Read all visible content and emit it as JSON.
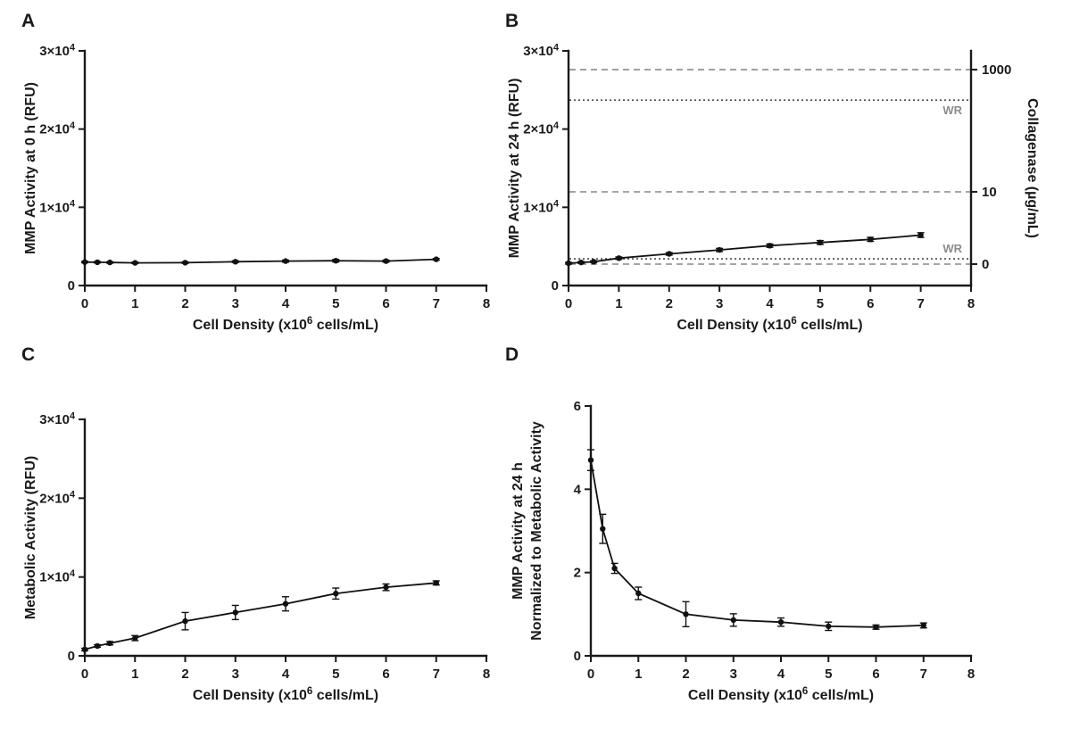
{
  "figure": {
    "background": "#ffffff",
    "panel_labels": [
      "A",
      "B",
      "C",
      "D"
    ]
  },
  "colors": {
    "axis": "#1a1a1a",
    "text": "#1a1a1a",
    "data_line": "#111111",
    "ref_dashed": "#9a9a9a",
    "ref_dotted": "#4a4a4a",
    "wr_label": "#8c8c8c"
  },
  "chart_data": [
    {
      "type": "line",
      "panel": "A",
      "xlabel": "Cell Density (x10^{6} cells/mL)",
      "ylabel": [
        "MMP Activity at 0 h (RFU)"
      ],
      "xlim": [
        0,
        8
      ],
      "ylim": [
        0,
        30000
      ],
      "xticks": [
        0,
        1,
        2,
        3,
        4,
        5,
        6,
        7,
        8
      ],
      "xtick_labels": [
        "0",
        "1",
        "2",
        "3",
        "4",
        "5",
        "6",
        "7",
        "8"
      ],
      "yticks": [
        0,
        10000,
        20000,
        30000
      ],
      "ytick_labels": [
        "0",
        "1×10^{4}",
        "2×10^{4}",
        "3×10^{4}"
      ],
      "x": [
        0,
        0.25,
        0.5,
        1,
        2,
        3,
        4,
        5,
        6,
        7
      ],
      "series": [
        {
          "name": "MMP activity at 0 h",
          "marker": "circle",
          "values": [
            3000,
            2980,
            2950,
            2900,
            2920,
            3050,
            3120,
            3170,
            3120,
            3350
          ],
          "errors": [
            90,
            90,
            90,
            90,
            90,
            110,
            130,
            160,
            130,
            110
          ]
        }
      ]
    },
    {
      "type": "line",
      "panel": "B",
      "xlabel": "Cell Density (x10^{6} cells/mL)",
      "ylabel": [
        "MMP Activity at 24 h (RFU)"
      ],
      "xlim": [
        0,
        8
      ],
      "ylim": [
        0,
        30000
      ],
      "xticks": [
        0,
        1,
        2,
        3,
        4,
        5,
        6,
        7,
        8
      ],
      "xtick_labels": [
        "0",
        "1",
        "2",
        "3",
        "4",
        "5",
        "6",
        "7",
        "8"
      ],
      "yticks": [
        0,
        10000,
        20000,
        30000
      ],
      "ytick_labels": [
        "0",
        "1×10^{4}",
        "2×10^{4}",
        "3×10^{4}"
      ],
      "x": [
        0,
        0.25,
        0.5,
        1,
        2,
        3,
        4,
        5,
        6,
        7
      ],
      "series": [
        {
          "name": "MMP activity at 24 h",
          "marker": "circle",
          "values": [
            2850,
            2950,
            3050,
            3500,
            4050,
            4550,
            5100,
            5500,
            5900,
            6450
          ],
          "errors": [
            110,
            110,
            110,
            150,
            160,
            200,
            210,
            250,
            260,
            300
          ]
        }
      ],
      "ref_lines": [
        {
          "y": 27600,
          "style": "dashed"
        },
        {
          "y": 23700,
          "style": "dotted",
          "label": "WR",
          "label_pos": "below"
        },
        {
          "y": 11980,
          "style": "dashed"
        },
        {
          "y": 3420,
          "style": "dotted",
          "label": "WR",
          "label_pos": "above"
        },
        {
          "y": 2740,
          "style": "dashed"
        }
      ],
      "right_axis": {
        "title": "Collagenase (µg/mL)",
        "ticks": [
          {
            "label": "1000",
            "y": 27600
          },
          {
            "label": "10",
            "y": 11980
          },
          {
            "label": "0",
            "y": 2740
          }
        ]
      }
    },
    {
      "type": "line",
      "panel": "C",
      "xlabel": "Cell Density (x10^{6} cells/mL)",
      "ylabel": [
        "Metabolic Activity (RFU)"
      ],
      "xlim": [
        0,
        8
      ],
      "ylim": [
        0,
        30000
      ],
      "xticks": [
        0,
        1,
        2,
        3,
        4,
        5,
        6,
        7,
        8
      ],
      "xtick_labels": [
        "0",
        "1",
        "2",
        "3",
        "4",
        "5",
        "6",
        "7",
        "8"
      ],
      "yticks": [
        0,
        10000,
        20000,
        30000
      ],
      "ytick_labels": [
        "0",
        "1×10^{4}",
        "2×10^{4}",
        "3×10^{4}"
      ],
      "x": [
        0,
        0.25,
        0.5,
        1,
        2,
        3,
        4,
        5,
        6,
        7
      ],
      "series": [
        {
          "name": "Metabolic activity",
          "marker": "circle",
          "values": [
            800,
            1250,
            1600,
            2250,
            4400,
            5500,
            6600,
            7900,
            8700,
            9250
          ],
          "errors": [
            160,
            160,
            220,
            320,
            1100,
            900,
            900,
            700,
            420,
            260
          ]
        }
      ]
    },
    {
      "type": "line",
      "panel": "D",
      "xlabel": "Cell Density (x10^{6} cells/mL)",
      "ylabel": [
        "MMP Activity at 24 h",
        "Normalized to Metabolic Activity"
      ],
      "xlim": [
        0,
        8
      ],
      "ylim": [
        0,
        6
      ],
      "xticks": [
        0,
        1,
        2,
        3,
        4,
        5,
        6,
        7,
        8
      ],
      "xtick_labels": [
        "0",
        "1",
        "2",
        "3",
        "4",
        "5",
        "6",
        "7",
        "8"
      ],
      "yticks": [
        0,
        2,
        4,
        6
      ],
      "ytick_labels": [
        "0",
        "2",
        "4",
        "6"
      ],
      "x": [
        0,
        0.25,
        0.5,
        1,
        2,
        3,
        4,
        5,
        6,
        7
      ],
      "series": [
        {
          "name": "Normalized MMP activity",
          "marker": "circle",
          "values": [
            4.7,
            3.05,
            2.1,
            1.5,
            1.0,
            0.86,
            0.81,
            0.71,
            0.69,
            0.73
          ],
          "errors": [
            0.25,
            0.35,
            0.12,
            0.15,
            0.3,
            0.15,
            0.1,
            0.1,
            0.05,
            0.06
          ]
        }
      ]
    }
  ]
}
